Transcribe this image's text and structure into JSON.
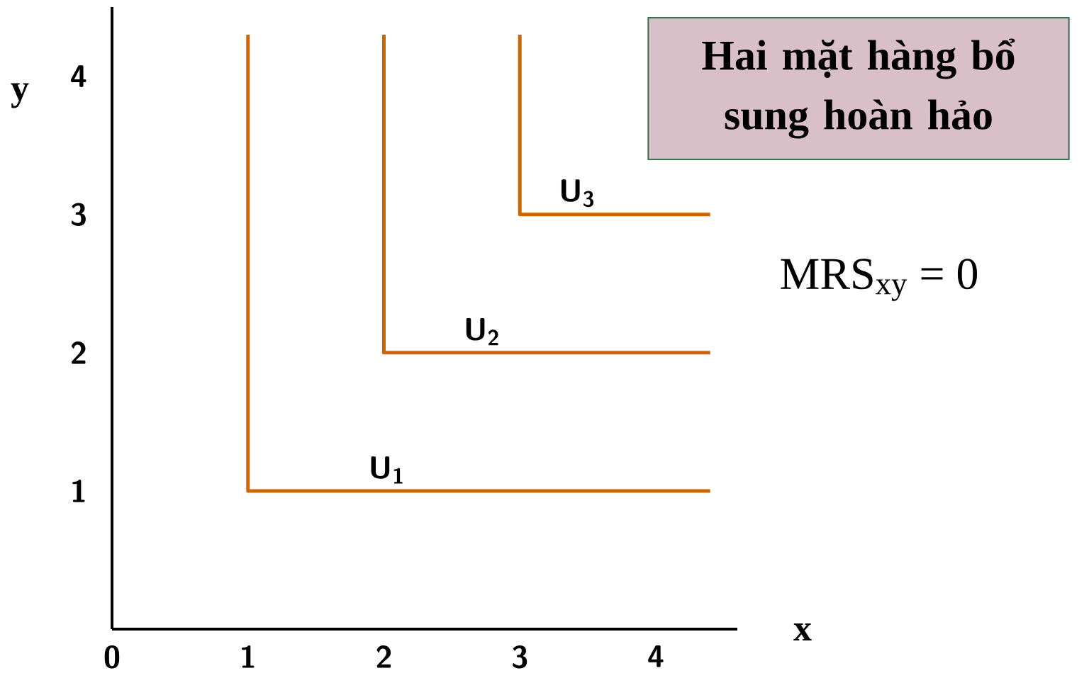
{
  "chart_data": {
    "type": "line",
    "title": "Hai mặt hàng bổ sung hoàn hảo",
    "xlabel": "x",
    "ylabel": "y",
    "annotations": [
      "MRS$_{xy}$ = 0"
    ],
    "xlim": [
      0,
      4.6
    ],
    "ylim": [
      0,
      4.5
    ],
    "xticks": [
      0,
      1,
      2,
      3,
      4
    ],
    "yticks": [
      1,
      2,
      3,
      4
    ],
    "grid": false,
    "legend": false,
    "marker": "none",
    "line_style": "solid",
    "series": [
      {
        "name": "U$_{1}$",
        "color": "#cc6600",
        "x": [
          1,
          1,
          4.4
        ],
        "values": [
          4.3,
          1,
          1
        ]
      },
      {
        "name": "U$_{2}$",
        "color": "#cc6600",
        "x": [
          2,
          2,
          4.4
        ],
        "values": [
          4.3,
          2,
          2
        ]
      },
      {
        "name": "U$_{3}$",
        "color": "#cc6600",
        "x": [
          3,
          3,
          4.4
        ],
        "values": [
          4.3,
          3,
          3
        ]
      }
    ]
  }
}
